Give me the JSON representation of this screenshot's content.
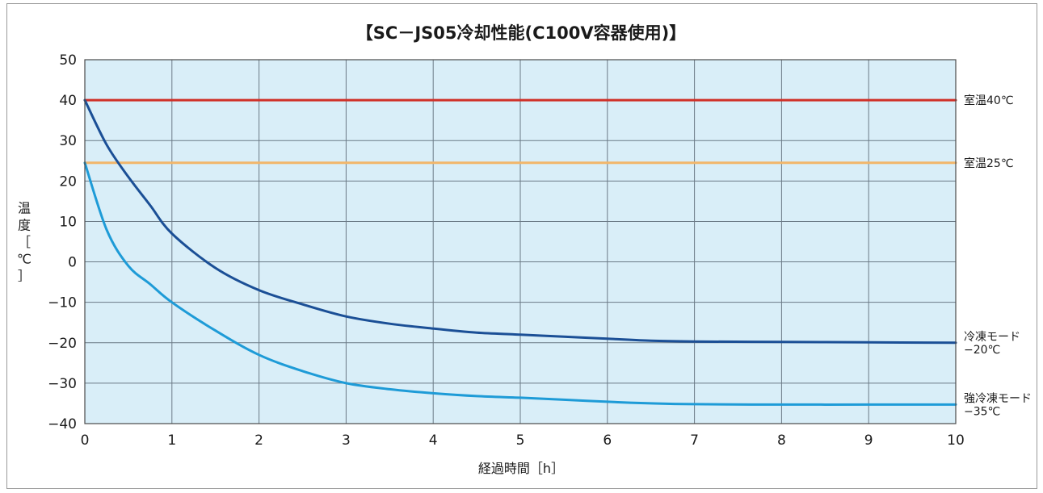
{
  "chart_data": {
    "type": "line",
    "title": "【SC－JS05冷却性能(C100V容器使用)】",
    "xlabel": "経過時間［h］",
    "ylabel": [
      "温",
      "度",
      "［",
      "℃",
      "］"
    ],
    "xlim": [
      0,
      10
    ],
    "ylim": [
      -40,
      50
    ],
    "x_ticks": [
      "0",
      "1",
      "2",
      "3",
      "4",
      "5",
      "6",
      "7",
      "8",
      "9",
      "10"
    ],
    "y_ticks": [
      "50",
      "40",
      "30",
      "20",
      "10",
      "0",
      "−10",
      "−20",
      "−30",
      "−40"
    ],
    "grid": true,
    "plot_background": "#d9eef8",
    "series": [
      {
        "name": "室温40℃",
        "label_lines": [
          "室温40℃"
        ],
        "color": "#d03028",
        "points": [
          [
            0,
            40
          ],
          [
            10,
            40
          ]
        ]
      },
      {
        "name": "室温25℃",
        "label_lines": [
          "室温25℃"
        ],
        "color": "#f2b66a",
        "points": [
          [
            0,
            24.5
          ],
          [
            10,
            24.5
          ]
        ]
      },
      {
        "name": "冷凍モード −20℃",
        "label_lines": [
          "冷凍モード",
          "−20℃"
        ],
        "color": "#1b4f96",
        "points": [
          [
            0,
            40
          ],
          [
            0.25,
            29
          ],
          [
            0.5,
            21
          ],
          [
            0.75,
            14
          ],
          [
            1,
            7
          ],
          [
            1.5,
            -1.5
          ],
          [
            2,
            -7
          ],
          [
            2.5,
            -10.5
          ],
          [
            3,
            -13.5
          ],
          [
            3.5,
            -15.3
          ],
          [
            4,
            -16.5
          ],
          [
            4.5,
            -17.5
          ],
          [
            5,
            -18
          ],
          [
            5.5,
            -18.5
          ],
          [
            6,
            -19
          ],
          [
            6.5,
            -19.5
          ],
          [
            7,
            -19.7
          ],
          [
            8,
            -19.8
          ],
          [
            9,
            -19.9
          ],
          [
            10,
            -20
          ]
        ]
      },
      {
        "name": "強冷凍モード −35℃",
        "label_lines": [
          "強冷凍モード",
          "−35℃"
        ],
        "color": "#1e9bd7",
        "points": [
          [
            0,
            24.5
          ],
          [
            0.25,
            8
          ],
          [
            0.5,
            -1
          ],
          [
            0.75,
            -5.5
          ],
          [
            1,
            -10
          ],
          [
            1.5,
            -17
          ],
          [
            2,
            -23
          ],
          [
            2.5,
            -27
          ],
          [
            3,
            -30
          ],
          [
            3.5,
            -31.5
          ],
          [
            4,
            -32.5
          ],
          [
            4.5,
            -33.2
          ],
          [
            5,
            -33.6
          ],
          [
            5.5,
            -34.1
          ],
          [
            6,
            -34.6
          ],
          [
            6.5,
            -35
          ],
          [
            7,
            -35.2
          ],
          [
            8,
            -35.3
          ],
          [
            9,
            -35.3
          ],
          [
            10,
            -35.3
          ]
        ]
      }
    ]
  }
}
